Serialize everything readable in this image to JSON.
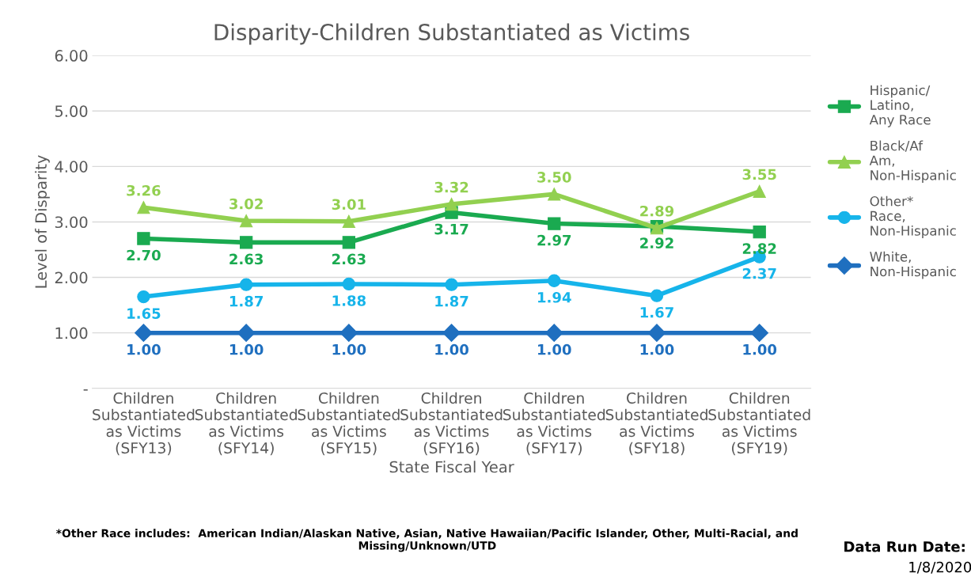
{
  "chart_data": {
    "type": "line",
    "title": "Disparity-Children Substantiated as Victims",
    "xlabel": "State Fiscal Year",
    "ylabel": "Level of Disparity",
    "categories": [
      "Children Substantiated as Victims (SFY13)",
      "Children Substantiated as Victims (SFY14)",
      "Children Substantiated as Victims (SFY15)",
      "Children Substantiated as Victims (SFY16)",
      "Children Substantiated as Victims (SFY17)",
      "Children Substantiated as Victims (SFY18)",
      "Children Substantiated as Victims (SFY19)"
    ],
    "series": [
      {
        "name": "Hispanic/Latino, Any Race",
        "color": "#1aaa50",
        "marker": "square",
        "values": [
          2.7,
          2.63,
          2.63,
          3.17,
          2.97,
          2.92,
          2.82
        ],
        "value_labels": [
          "2.70",
          "2.63",
          "2.63",
          "3.17",
          "2.97",
          "2.92",
          "2.82"
        ]
      },
      {
        "name": "Black/Af Am, Non-Hispanic",
        "color": "#92d050",
        "marker": "triangle",
        "values": [
          3.26,
          3.02,
          3.01,
          3.32,
          3.5,
          2.89,
          3.55
        ],
        "value_labels": [
          "3.26",
          "3.02",
          "3.01",
          "3.32",
          "3.50",
          "2.89",
          "3.55"
        ]
      },
      {
        "name": "Other* Race, Non-Hispanic",
        "color": "#16b4ea",
        "marker": "circle",
        "values": [
          1.65,
          1.87,
          1.88,
          1.87,
          1.94,
          1.67,
          2.37
        ],
        "value_labels": [
          "1.65",
          "1.87",
          "1.88",
          "1.87",
          "1.94",
          "1.67",
          "2.37"
        ]
      },
      {
        "name": "White, Non-Hispanic",
        "color": "#1f6fbf",
        "marker": "diamond",
        "values": [
          1.0,
          1.0,
          1.0,
          1.0,
          1.0,
          1.0,
          1.0
        ],
        "value_labels": [
          "1.00",
          "1.00",
          "1.00",
          "1.00",
          "1.00",
          "1.00",
          "1.00"
        ]
      }
    ],
    "ylim": [
      0,
      6
    ],
    "yticks": [
      {
        "value": 0,
        "label": "-"
      },
      {
        "value": 1,
        "label": "1.00"
      },
      {
        "value": 2,
        "label": "2.00"
      },
      {
        "value": 3,
        "label": "3.00"
      },
      {
        "value": 4,
        "label": "4.00"
      },
      {
        "value": 5,
        "label": "5.00"
      },
      {
        "value": 6,
        "label": "6.00"
      }
    ],
    "grid": "y",
    "legend": "right",
    "annotations": [
      "*Other Race includes:  American Indian/Alaskan Native, Asian, Native Hawaiian/Pacific Islander, Other, Multi-Racial, and Missing/Unknown/UTD",
      "Data Run Date:",
      "1/8/2020"
    ]
  }
}
